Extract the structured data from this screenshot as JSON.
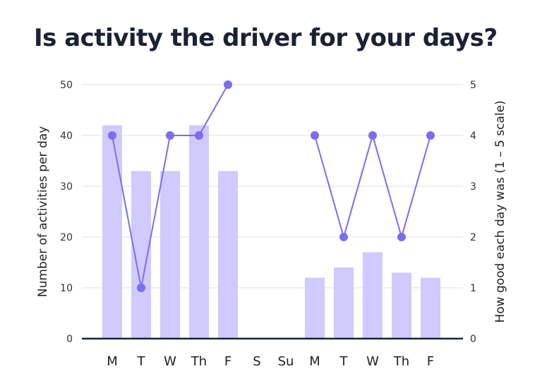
{
  "title": "Is activity the driver for your days?",
  "chart_data": {
    "type": "bar+line",
    "title": "Is activity the driver for your days?",
    "categories": [
      "M",
      "T",
      "W",
      "Th",
      "F",
      "S",
      "Su",
      "M",
      "T",
      "W",
      "Th",
      "F"
    ],
    "series": [
      {
        "name": "Number of activities per day",
        "type": "bar",
        "axis": "left",
        "color": "#d0caff",
        "values": [
          42,
          33,
          33,
          42,
          33,
          null,
          null,
          12,
          14,
          17,
          13,
          12
        ]
      },
      {
        "name": "How good each day was (1–5 scale)",
        "type": "line",
        "axis": "right",
        "color": "#7b6cf0",
        "values": [
          4,
          1,
          4,
          4,
          5,
          null,
          null,
          4,
          2,
          4,
          2,
          4
        ]
      }
    ],
    "ylabel": "Number of activities per day",
    "y2label": "How good each day was (1 – 5 scale)",
    "ylim": [
      0,
      50
    ],
    "y2lim": [
      0,
      5
    ],
    "yticks": [
      "0",
      "10",
      "20",
      "30",
      "40",
      "50"
    ],
    "y2ticks": [
      "0",
      "1",
      "2",
      "3",
      "4",
      "5"
    ],
    "grid": true,
    "legend": "none"
  }
}
